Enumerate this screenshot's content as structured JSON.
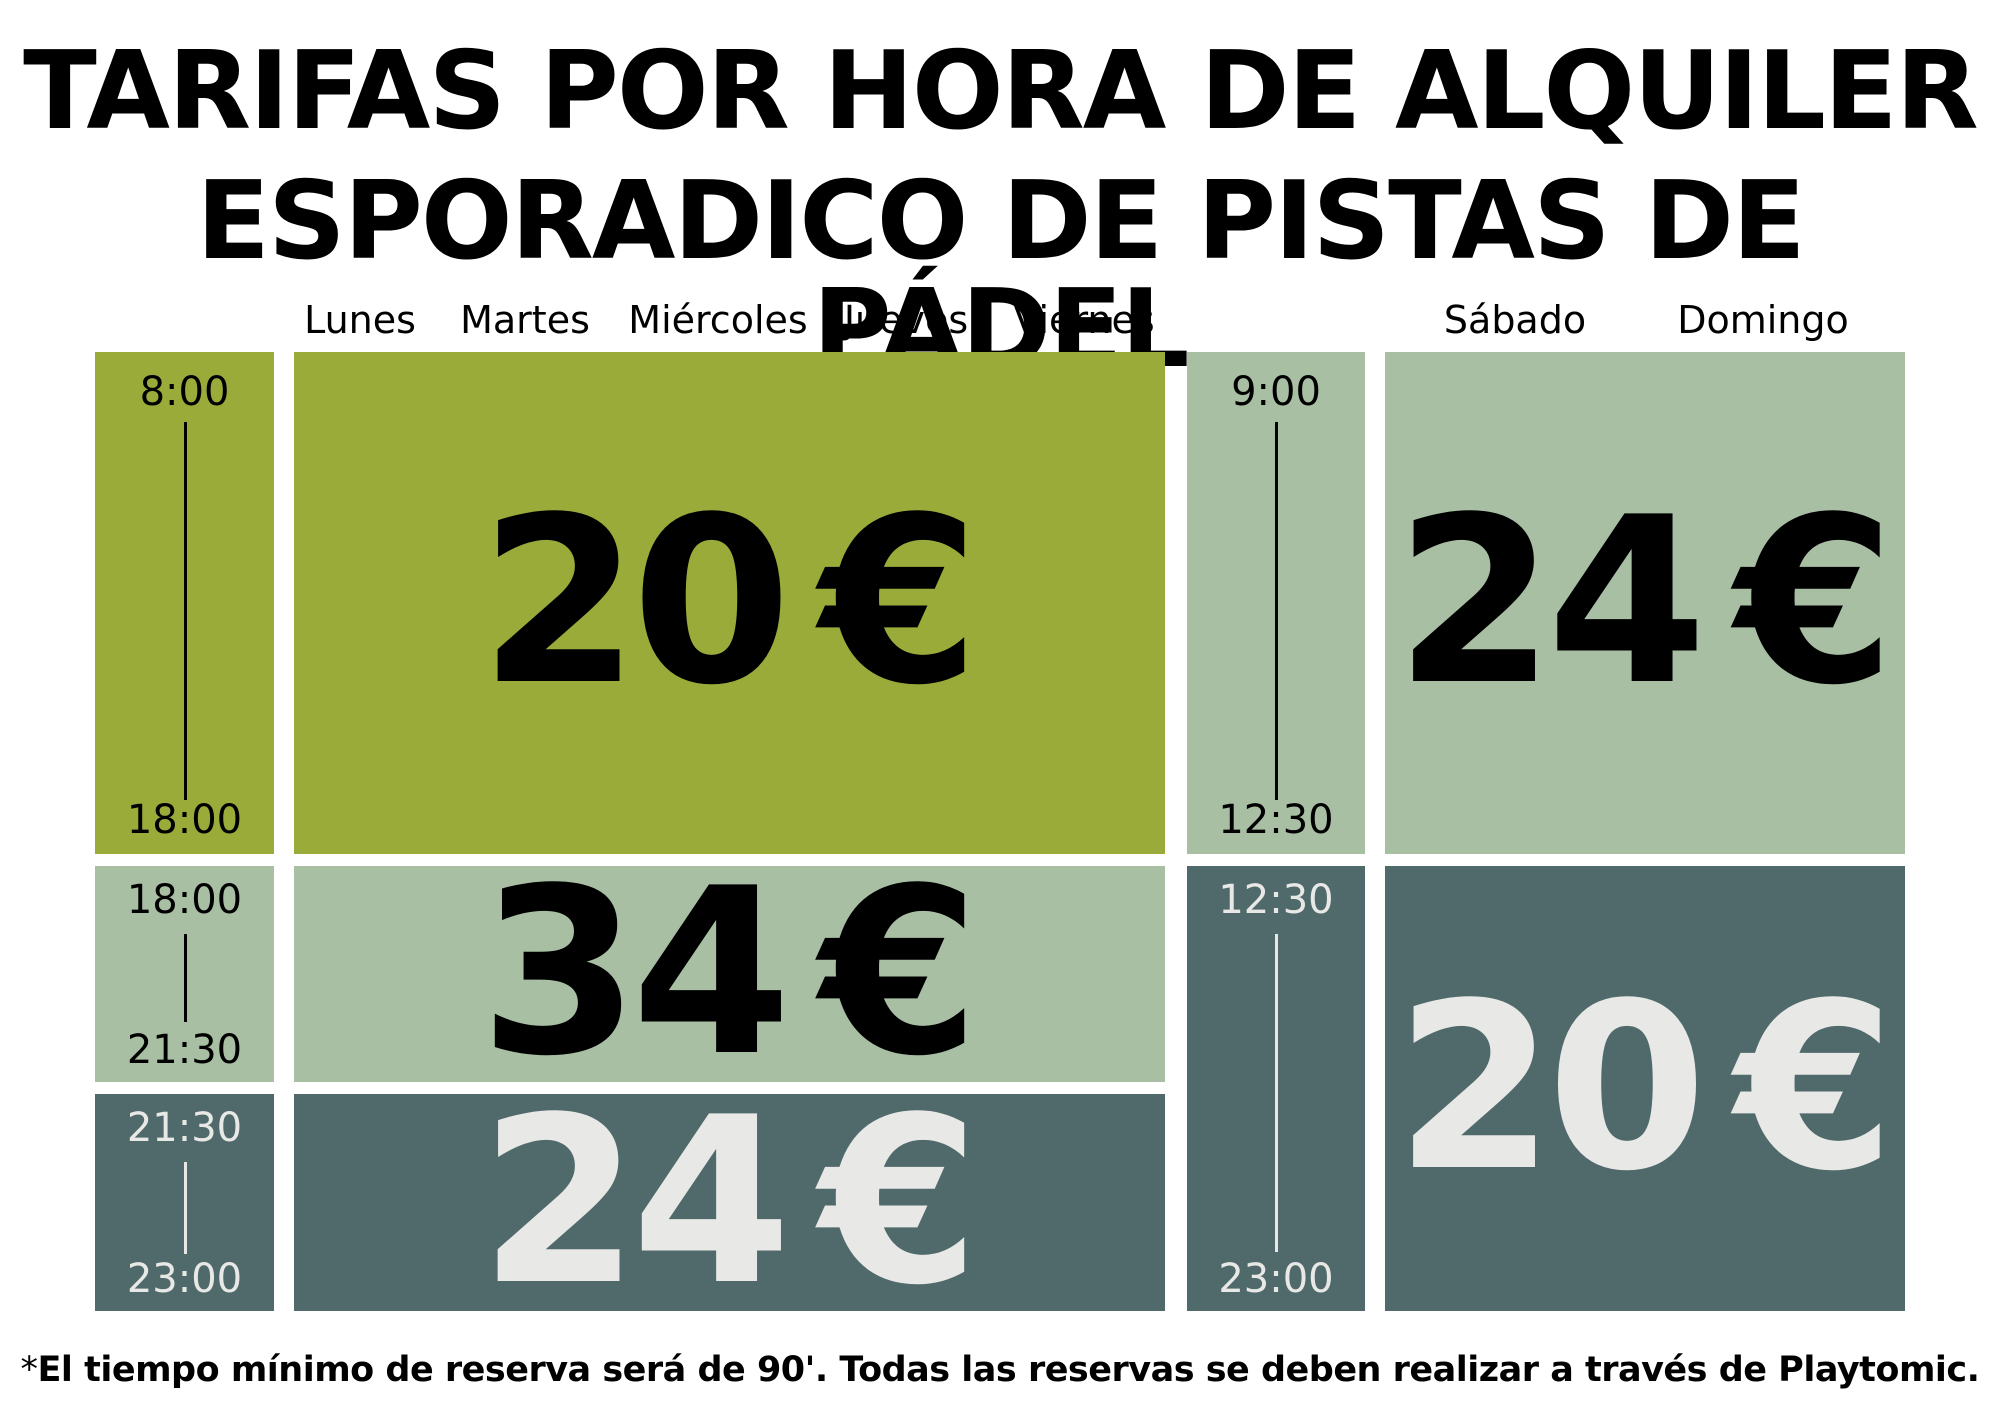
{
  "title": {
    "line1": "TARIFAS POR HORA DE ALQUILER",
    "line2": "ESPORADICO DE PISTAS DE PÁDEL"
  },
  "days": {
    "weekday": [
      "Lunes",
      "Martes",
      "Miércoles",
      "Jueves",
      "Viernes"
    ],
    "weekend": [
      "Sábado",
      "Domingo"
    ]
  },
  "weekday": {
    "slot1": {
      "start": "8:00",
      "end": "18:00",
      "price": "20",
      "currency": "€"
    },
    "slot2": {
      "start": "18:00",
      "end": "21:30",
      "price": "34",
      "currency": "€"
    },
    "slot3": {
      "start": "21:30",
      "end": "23:00",
      "price": "24",
      "currency": "€"
    }
  },
  "weekend": {
    "slot1": {
      "start": "9:00",
      "end": "12:30",
      "price": "24",
      "currency": "€"
    },
    "slot2": {
      "start": "12:30",
      "end": "23:00",
      "price": "20",
      "currency": "€"
    }
  },
  "colors": {
    "olive": "#9aab3a",
    "sage": "#a8bfa4",
    "slate": "#506a6b",
    "dark_text": "#000000",
    "light_text": "#e8e8e6"
  },
  "footnote": {
    "star": "*",
    "text": "El tiempo mínimo de reserva será de 90'. Todas las reservas se deben realizar a través de Playtomic."
  }
}
